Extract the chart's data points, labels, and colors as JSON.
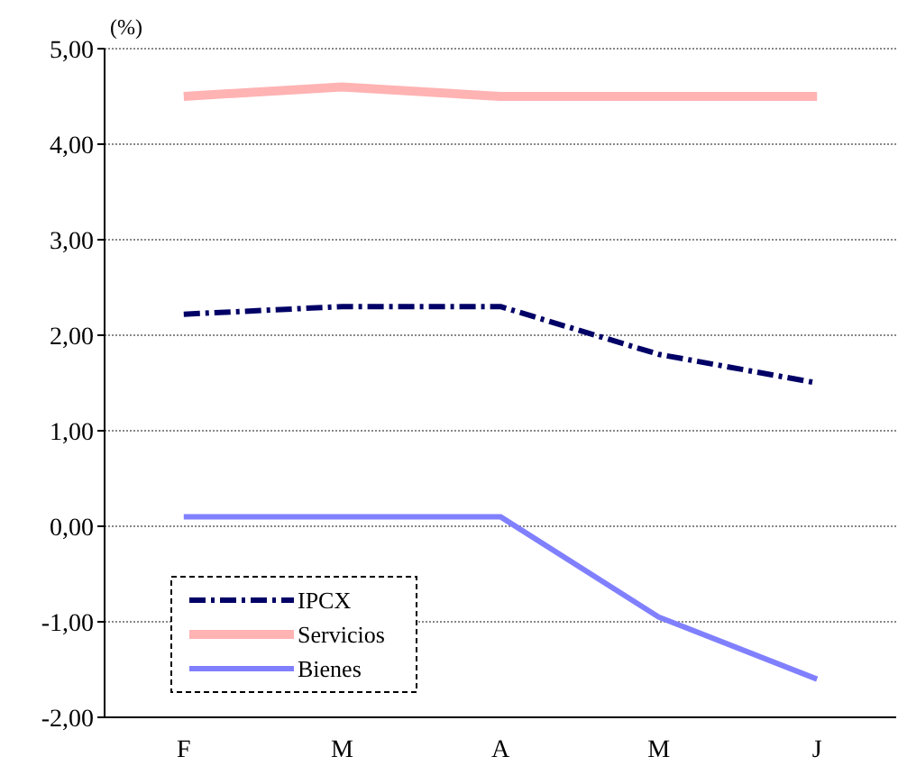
{
  "chart_data": {
    "type": "line",
    "ylabel": "(%)",
    "categories": [
      "F",
      "M",
      "A",
      "M",
      "J"
    ],
    "series": [
      {
        "name": "IPCX",
        "color": "#000066",
        "values": [
          2.22,
          2.3,
          2.3,
          1.8,
          1.5
        ],
        "line_style": "dashed"
      },
      {
        "name": "Servicios",
        "color": "#ffb3b3",
        "values": [
          4.5,
          4.6,
          4.5,
          4.5,
          4.5
        ],
        "line_style": "solid"
      },
      {
        "name": "Bienes",
        "color": "#8080ff",
        "values": [
          0.1,
          0.1,
          0.1,
          -0.95,
          -1.6
        ],
        "line_style": "solid"
      }
    ],
    "ylim": [
      -2,
      5
    ],
    "yticks": [
      {
        "value": -2,
        "label": "-2,00"
      },
      {
        "value": -1,
        "label": "-1,00"
      },
      {
        "value": 0,
        "label": "0,00"
      },
      {
        "value": 1,
        "label": "1,00"
      },
      {
        "value": 2,
        "label": "2,00"
      },
      {
        "value": 3,
        "label": "3,00"
      },
      {
        "value": 4,
        "label": "4,00"
      },
      {
        "value": 5,
        "label": "5,00"
      }
    ],
    "grid": "y",
    "legend": "bottom left",
    "marker": "none"
  }
}
